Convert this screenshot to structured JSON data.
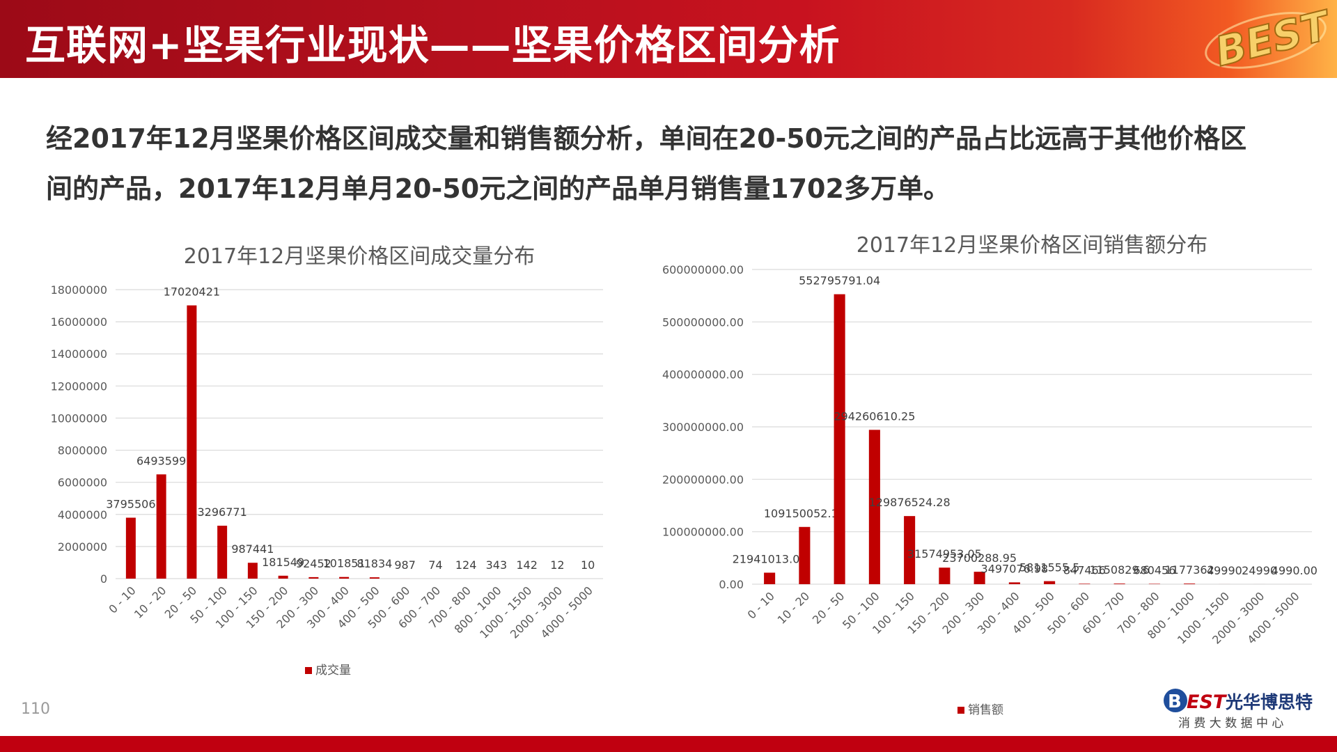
{
  "header": {
    "title": "互联网+坚果行业现状——坚果价格区间分析",
    "logo_text": "BEST"
  },
  "intro": {
    "line1": "经2017年12月坚果价格区间成交量和销售额分析，单间在20-50元之间的产品占比远高于其他价格区",
    "line2": "间的产品，2017年12月单月20-50元之间的产品单月销售量1702多万单。"
  },
  "page_number": "110",
  "brand": {
    "logo": "BEST",
    "name": "光华博思特",
    "subtitle": "消 费 大 数 据 中 心"
  },
  "colors": {
    "bar": "#c00000",
    "grid": "#d9d9d9",
    "axis_text": "#595959",
    "header_red": "#b5101d"
  },
  "chart_data": [
    {
      "type": "bar",
      "title": "2017年12月坚果价格区间成交量分布",
      "categories": [
        "0 - 10",
        "10 - 20",
        "20 - 50",
        "50 - 100",
        "100 - 150",
        "150 - 200",
        "200 - 300",
        "300 - 400",
        "400 - 500",
        "500 - 600",
        "600 - 700",
        "700 - 800",
        "800 - 1000",
        "1000 - 1500",
        "2000 - 3000",
        "4000 - 5000"
      ],
      "series": [
        {
          "name": "成交量",
          "values": [
            3795506,
            6493599,
            17020421,
            3296771,
            987441,
            181549,
            92452,
            101851,
            81834,
            987,
            74,
            124,
            343,
            142,
            12,
            10
          ]
        }
      ],
      "data_labels": [
        "3795506",
        "6493599",
        "17020421",
        "3296771",
        "987441",
        "181549",
        "92452",
        "101851",
        "81834",
        "987",
        "74",
        "124",
        "343",
        "142",
        "12",
        "10"
      ],
      "yticks": [
        "0",
        "2000000",
        "4000000",
        "6000000",
        "8000000",
        "10000000",
        "12000000",
        "14000000",
        "16000000",
        "18000000"
      ],
      "ylim": [
        0,
        18000000
      ],
      "grid": true,
      "legend": "bottom"
    },
    {
      "type": "bar",
      "title": "2017年12月坚果价格区间销售额分布",
      "categories": [
        "0 - 10",
        "10 - 20",
        "20 - 50",
        "50 - 100",
        "100 - 150",
        "150 - 200",
        "200 - 300",
        "300 - 400",
        "400 - 500",
        "500 - 600",
        "600 - 700",
        "700 - 800",
        "800 - 1000",
        "1000 - 1500",
        "2000 - 3000",
        "4000 - 5000"
      ],
      "series": [
        {
          "name": "销售额",
          "values": [
            21941013.04,
            109150052.13,
            552795791.04,
            294260610.25,
            129876524.28,
            31574953.05,
            23700288.95,
            3497076.98,
            5811555.5,
            847466,
            1150829.6,
            680456,
            1177362,
            49990,
            24990,
            4990
          ]
        }
      ],
      "data_labels": [
        "21941013.04",
        "109150052.13",
        "552795791.04",
        "294260610.25",
        "129876524.28",
        "31574953.05",
        "23700288.95",
        "3497076.98",
        "5811555.5",
        "847466",
        "1150829.6",
        "680456",
        "1177362",
        "49990",
        "24990",
        "4990.00"
      ],
      "yticks": [
        "0.00",
        "100000000.00",
        "200000000.00",
        "300000000.00",
        "400000000.00",
        "500000000.00",
        "600000000.00"
      ],
      "ylim": [
        0,
        600000000
      ],
      "grid": true,
      "legend": "bottom"
    }
  ]
}
